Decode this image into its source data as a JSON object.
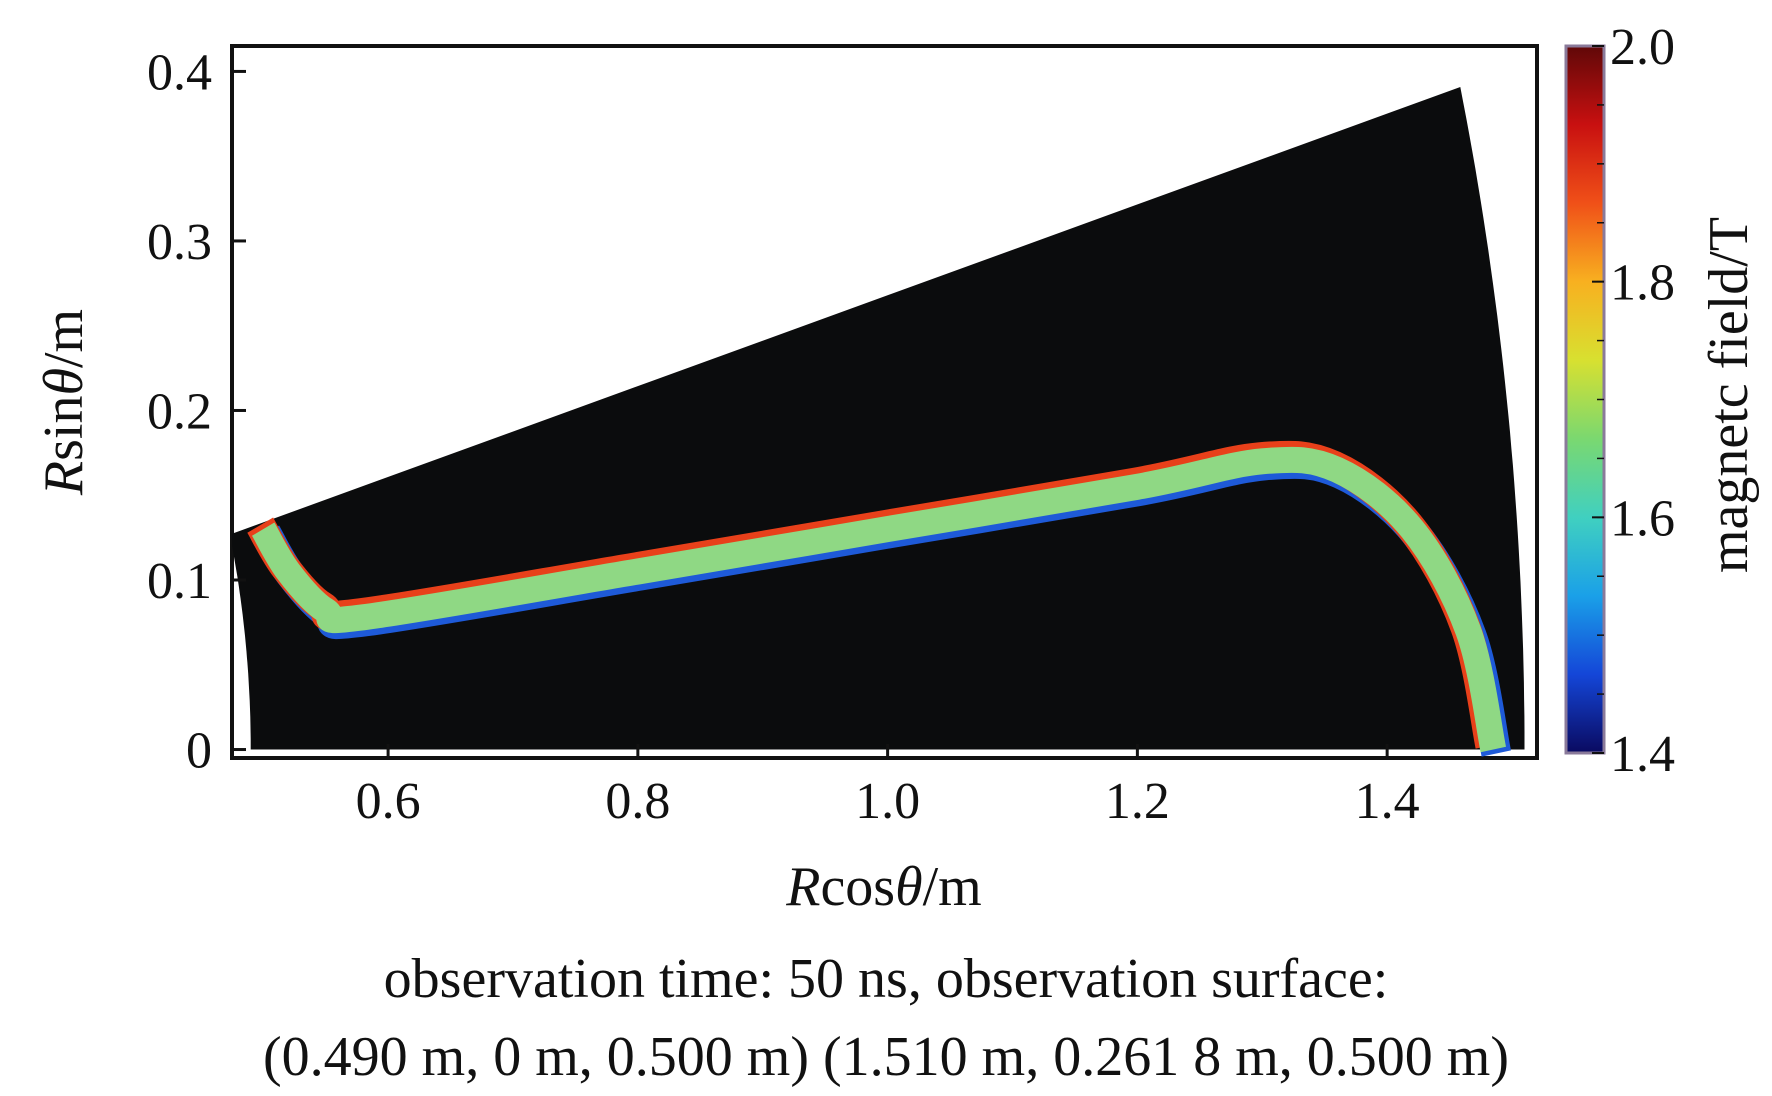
{
  "chart_data": {
    "type": "heatmap",
    "title": "",
    "xlabel": {
      "italic": "R",
      "mid": "cos",
      "greek": "θ",
      "unit": "/m"
    },
    "ylabel": {
      "italic": "R",
      "mid": "sin",
      "greek": "θ",
      "unit": "/m"
    },
    "xlim": [
      0.475,
      1.52
    ],
    "ylim": [
      -0.005,
      0.415
    ],
    "x_ticks": [
      0.6,
      0.8,
      1.0,
      1.2,
      1.4
    ],
    "x_tick_labels": [
      "0.6",
      "0.8",
      "1.0",
      "1.2",
      "1.4"
    ],
    "y_ticks": [
      0,
      0.1,
      0.2,
      0.3,
      0.4
    ],
    "y_tick_labels": [
      "0",
      "0.1",
      "0.2",
      "0.3",
      "0.4"
    ],
    "grid": false,
    "domain": {
      "shape": "annular sector",
      "fill_color": "#0b0c0d",
      "inner_radius": 0.49,
      "outer_radius": 1.51,
      "angle_range_deg": [
        0,
        15
      ]
    },
    "field_band": {
      "description_color_range": "green-cyan along straight section, red-orange on inner edges of curved sections, blue on outer edges",
      "centerline": [
        [
          0.5,
          0.13
        ],
        [
          0.52,
          0.105
        ],
        [
          0.55,
          0.082
        ],
        [
          0.58,
          0.078
        ],
        [
          0.8,
          0.105
        ],
        [
          1.0,
          0.13
        ],
        [
          1.2,
          0.155
        ],
        [
          1.3,
          0.17
        ],
        [
          1.36,
          0.165
        ],
        [
          1.42,
          0.13
        ],
        [
          1.465,
          0.07
        ],
        [
          1.485,
          0.0
        ]
      ],
      "typical_value": 1.65
    },
    "colorbar": {
      "label": "magnetc field/T",
      "min": 1.4,
      "max": 2.0,
      "ticks": [
        1.4,
        1.6,
        1.8,
        2.0
      ],
      "tick_labels": [
        "1.4",
        "1.6",
        "1.8",
        "2.0"
      ],
      "colormap": [
        "#0a0a60",
        "#1446d8",
        "#1aa0e8",
        "#40d0c0",
        "#7ad870",
        "#d8e030",
        "#f8b020",
        "#f05018",
        "#c81010",
        "#600808"
      ]
    }
  },
  "caption": {
    "line1": "observation time: 50 ns, observation surface:",
    "line2": "(0.490 m, 0 m, 0.500 m) (1.510 m, 0.261 8 m, 0.500 m)"
  }
}
